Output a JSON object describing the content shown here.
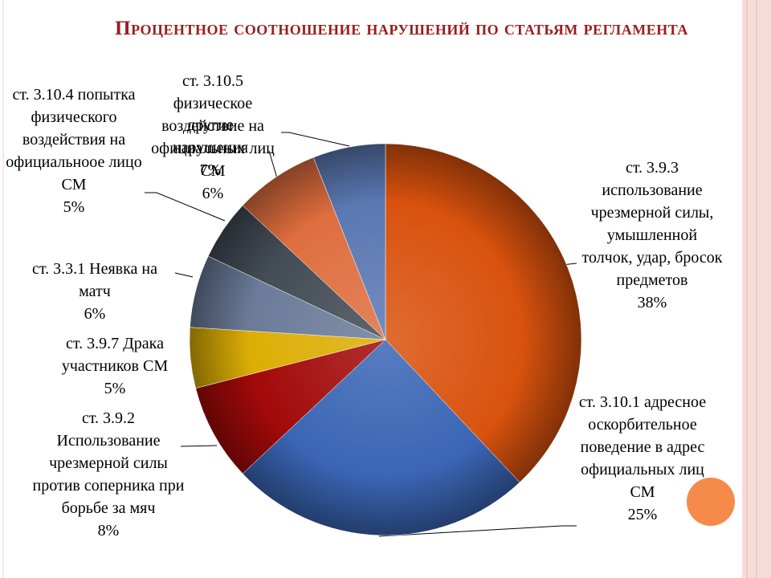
{
  "chart_data": {
    "type": "pie",
    "title": "Процентное соотношение нарушений по статьям регламента",
    "categories": [
      "ст. 3.9.3 использование чрезмерной силы, умышленной толчок, удар, бросок предметов",
      "ст. 3.10.1 адресное оскорбительное поведение в адрес официальных лиц СМ",
      "ст. 3.9.2 Использование чрезмерной силы против соперника при борьбе за мяч",
      "ст. 3.9.7 Драка участников СМ",
      "ст. 3.3.1 Неявка на матч",
      "ст. 3.10.4 попытка физического воздействия на официальноое лицо СМ",
      "другие нарушения",
      "ст. 3.10.5 физическое воздействие на официальных лиц СМ"
    ],
    "values": [
      38,
      25,
      8,
      5,
      6,
      5,
      7,
      6
    ],
    "value_labels": [
      "38%",
      "25%",
      "8%",
      "5%",
      "6%",
      "5%",
      "7%",
      "6%"
    ],
    "colors": [
      "#d9520e",
      "#3a66b5",
      "#a30a0a",
      "#dcae05",
      "#6b7b99",
      "#434b55",
      "#df6e3e",
      "#5b78b2"
    ]
  }
}
